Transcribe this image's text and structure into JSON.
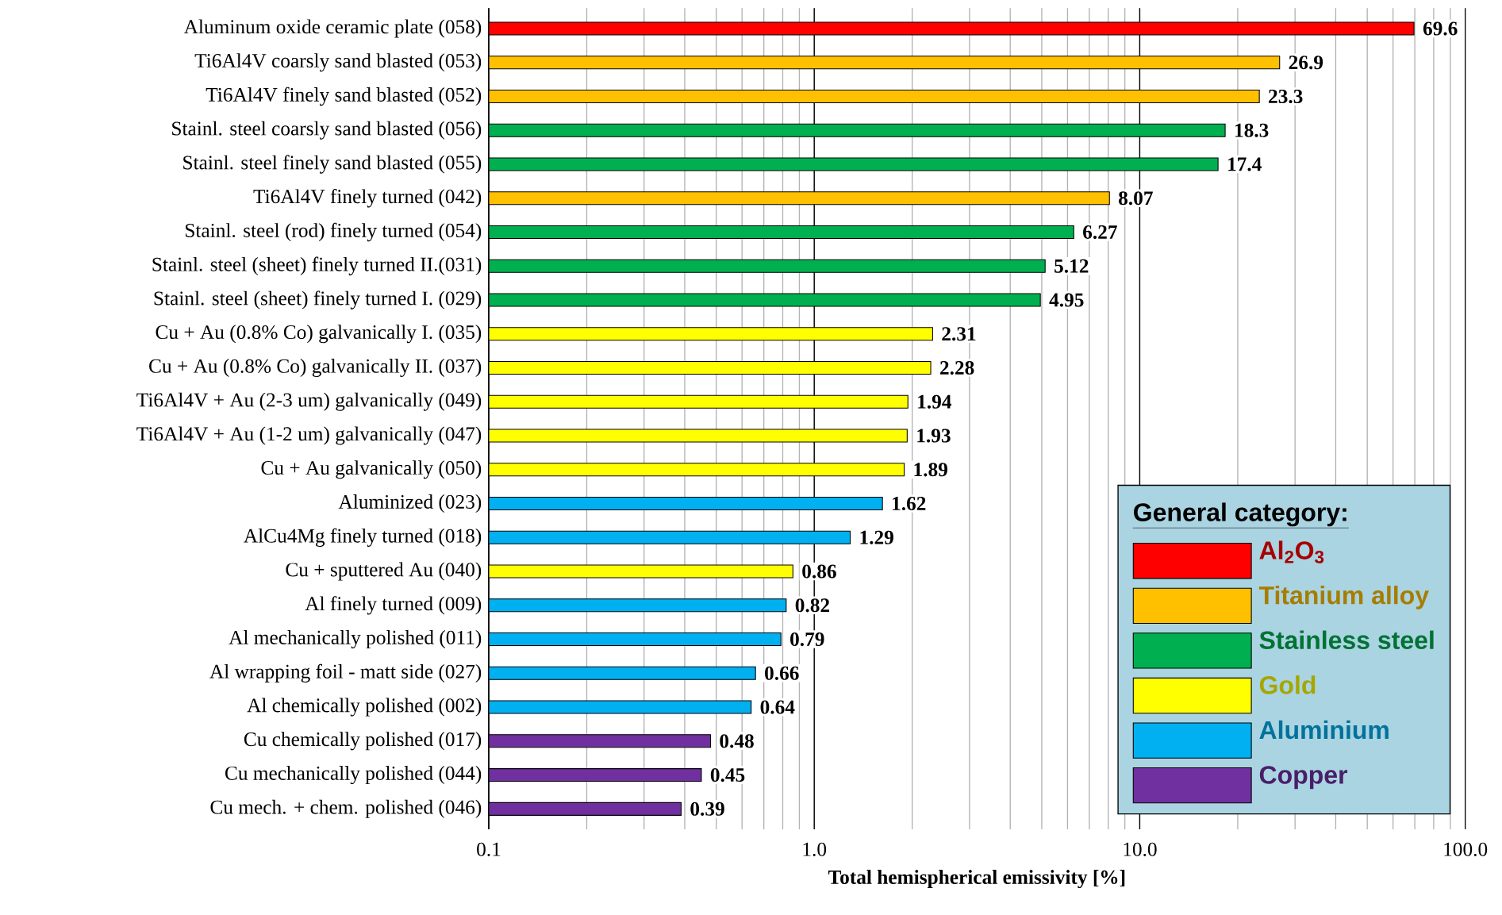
{
  "chart_data": {
    "type": "bar",
    "orientation": "horizontal",
    "log": "x",
    "grid": "x",
    "legend": "bottom right",
    "legend_title": "General category:",
    "xlabel": "Total hemispherical emissivity [%]",
    "xlim": [
      0.1,
      100
    ],
    "xticks": [
      {
        "value": 0.1,
        "label": "0.1"
      },
      {
        "value": 1,
        "label": "1.0"
      },
      {
        "value": 10,
        "label": "10.0"
      },
      {
        "value": 100,
        "label": "100.0"
      }
    ],
    "categories": [
      "Aluminum oxide ceramic plate (058)",
      "Ti6Al4V coarsly sand blasted (053)",
      "Ti6Al4V finely sand blasted (052)",
      "Stainl. steel coarsly sand blasted (056)",
      "Stainl. steel finely sand blasted (055)",
      "Ti6Al4V finely turned (042)",
      "Stainl. steel (rod) finely turned (054)",
      "Stainl. steel (sheet) finely turned II.(031)",
      "Stainl. steel (sheet) finely turned I. (029)",
      "Cu + Au (0.8% Co) galvanically I. (035)",
      "Cu + Au (0.8% Co) galvanically II. (037)",
      "Ti6Al4V + Au (2-3 um) galvanically (049)",
      "Ti6Al4V + Au (1-2 um) galvanically (047)",
      "Cu + Au galvanically (050)",
      "Aluminized (023)",
      "AlCu4Mg finely turned (018)",
      "Cu + sputtered Au (040)",
      "Al finely turned (009)",
      "Al mechanically polished (011)",
      "Al wrapping foil - matt side (027)",
      "Al  chemically polished (002)",
      "Cu chemically polished (017)",
      "Cu mechanically polished (044)",
      "Cu mech. + chem. polished (046)"
    ],
    "series": [
      {
        "name": "Al$_{2}$O$_{3}$",
        "color": "#ff0000",
        "values": [
          69.6,
          null,
          null,
          null,
          null,
          null,
          null,
          null,
          null,
          null,
          null,
          null,
          null,
          null,
          null,
          null,
          null,
          null,
          null,
          null,
          null,
          null,
          null,
          null
        ],
        "value_labels": [
          "69.6",
          null,
          null,
          null,
          null,
          null,
          null,
          null,
          null,
          null,
          null,
          null,
          null,
          null,
          null,
          null,
          null,
          null,
          null,
          null,
          null,
          null,
          null,
          null
        ]
      },
      {
        "name": "Titanium alloy",
        "color": "#ffc000",
        "values": [
          null,
          26.9,
          23.3,
          null,
          null,
          8.07,
          null,
          null,
          null,
          null,
          null,
          null,
          null,
          null,
          null,
          null,
          null,
          null,
          null,
          null,
          null,
          null,
          null,
          null
        ],
        "value_labels": [
          null,
          "26.9",
          "23.3",
          null,
          null,
          "8.07",
          null,
          null,
          null,
          null,
          null,
          null,
          null,
          null,
          null,
          null,
          null,
          null,
          null,
          null,
          null,
          null,
          null,
          null
        ]
      },
      {
        "name": "Stainless steel",
        "color": "#00b050",
        "values": [
          null,
          null,
          null,
          18.3,
          17.4,
          null,
          6.27,
          5.12,
          4.95,
          null,
          null,
          null,
          null,
          null,
          null,
          null,
          null,
          null,
          null,
          null,
          null,
          null,
          null,
          null
        ],
        "value_labels": [
          null,
          null,
          null,
          "18.3",
          "17.4",
          null,
          "6.27",
          "5.12",
          "4.95",
          null,
          null,
          null,
          null,
          null,
          null,
          null,
          null,
          null,
          null,
          null,
          null,
          null,
          null,
          null
        ]
      },
      {
        "name": "Gold",
        "color": "#ffff00",
        "values": [
          null,
          null,
          null,
          null,
          null,
          null,
          null,
          null,
          null,
          2.31,
          2.28,
          1.94,
          1.93,
          1.89,
          null,
          null,
          0.86,
          null,
          null,
          null,
          null,
          null,
          null,
          null
        ],
        "value_labels": [
          null,
          null,
          null,
          null,
          null,
          null,
          null,
          null,
          null,
          "2.31",
          "2.28",
          "1.94",
          "1.93",
          "1.89",
          null,
          null,
          "0.86",
          null,
          null,
          null,
          null,
          null,
          null,
          null
        ]
      },
      {
        "name": "Aluminium",
        "color": "#00b0f0",
        "values": [
          null,
          null,
          null,
          null,
          null,
          null,
          null,
          null,
          null,
          null,
          null,
          null,
          null,
          null,
          1.62,
          1.29,
          null,
          0.82,
          0.79,
          0.66,
          0.64,
          null,
          null,
          null
        ],
        "value_labels": [
          null,
          null,
          null,
          null,
          null,
          null,
          null,
          null,
          null,
          null,
          null,
          null,
          null,
          null,
          "1.62",
          "1.29",
          null,
          "0.82",
          "0.79",
          "0.66",
          "0.64",
          null,
          null,
          null
        ]
      },
      {
        "name": "Copper",
        "color": "#7030a0",
        "values": [
          null,
          null,
          null,
          null,
          null,
          null,
          null,
          null,
          null,
          null,
          null,
          null,
          null,
          null,
          null,
          null,
          null,
          null,
          null,
          null,
          null,
          0.48,
          0.45,
          0.39
        ],
        "value_labels": [
          null,
          null,
          null,
          null,
          null,
          null,
          null,
          null,
          null,
          null,
          null,
          null,
          null,
          null,
          null,
          null,
          null,
          null,
          null,
          null,
          null,
          "0.48",
          "0.45",
          "0.39"
        ]
      }
    ]
  }
}
